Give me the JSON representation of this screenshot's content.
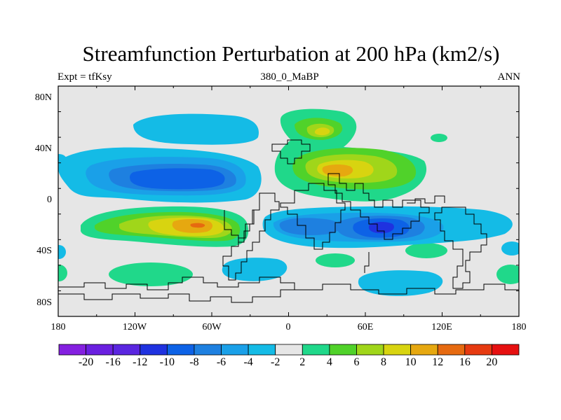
{
  "title": "Streamfunction Perturbation at 200 hPa (km2/s)",
  "subtitle_left": "Expt = tfKsy",
  "subtitle_center": "380_0_MaBP",
  "subtitle_right": "ANN",
  "y_tick_labels": [
    "80N",
    "40N",
    "0",
    "40S",
    "80S"
  ],
  "x_tick_labels": [
    "180",
    "120W",
    "60W",
    "0",
    "60E",
    "120E",
    "180"
  ],
  "colorbar_labels": [
    "-20",
    "-16",
    "-12",
    "-10",
    "-8",
    "-6",
    "-4",
    "-2",
    "2",
    "4",
    "6",
    "8",
    "10",
    "12",
    "16",
    "20"
  ],
  "colorbar_colors": [
    "#8420e0",
    "#6a20e0",
    "#5a26e0",
    "#1f32e0",
    "#0d62e6",
    "#1e80e0",
    "#1aa0e8",
    "#14bbe6",
    "#e6e6e6",
    "#20d88a",
    "#50d22a",
    "#a0d61a",
    "#d8d410",
    "#e6a810",
    "#e66a10",
    "#e63a10",
    "#e61010"
  ],
  "background_color": "#e6e6e6"
}
